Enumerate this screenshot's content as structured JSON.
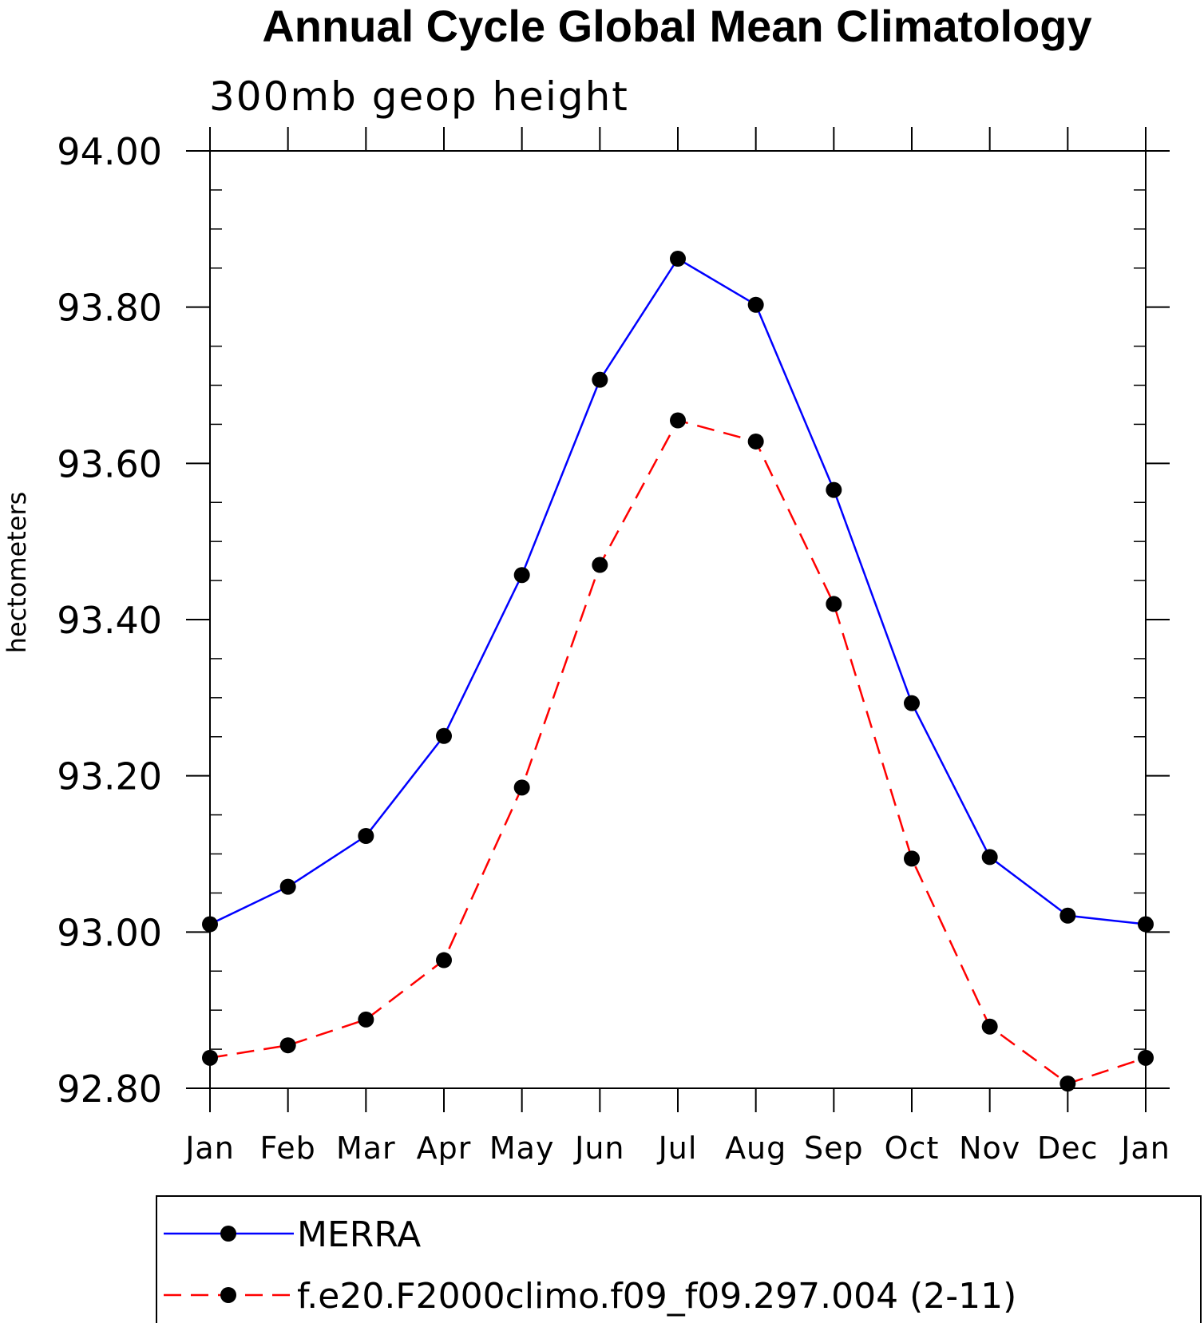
{
  "chart_data": {
    "type": "line",
    "title": "Annual Cycle Global Mean Climatology",
    "subtitle": "300mb geop height",
    "xlabel": "",
    "ylabel": "hectometers",
    "categories": [
      "Jan",
      "Feb",
      "Mar",
      "Apr",
      "May",
      "Jun",
      "Jul",
      "Aug",
      "Sep",
      "Oct",
      "Nov",
      "Dec",
      "Jan"
    ],
    "ylim": [
      92.8,
      94.0
    ],
    "y_major_ticks": [
      "92.80",
      "93.00",
      "93.20",
      "93.40",
      "93.60",
      "93.80",
      "94.00"
    ],
    "y_major_values": [
      92.8,
      93.0,
      93.2,
      93.4,
      93.6,
      93.8,
      94.0
    ],
    "y_minor_step": 0.05,
    "grid": false,
    "legend_position": "bottom",
    "series": [
      {
        "name": "MERRA",
        "color": "#0000ff",
        "style": "solid",
        "values": [
          93.01,
          93.058,
          93.123,
          93.251,
          93.457,
          93.707,
          93.862,
          93.803,
          93.566,
          93.293,
          93.096,
          93.021,
          93.01
        ]
      },
      {
        "name": "f.e20.F2000climo.f09_f09.297.004 (2-11)",
        "color": "#ff0000",
        "style": "dashed",
        "values": [
          92.839,
          92.855,
          92.888,
          92.964,
          93.185,
          93.47,
          93.655,
          93.628,
          93.42,
          93.094,
          92.879,
          92.806,
          92.839
        ]
      }
    ],
    "marker_color": "#000000"
  }
}
